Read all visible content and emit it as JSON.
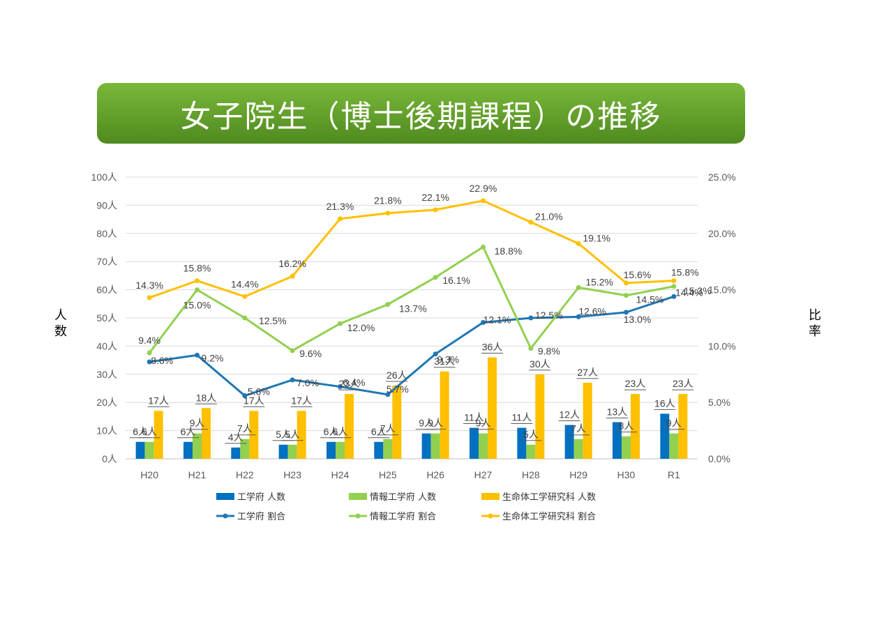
{
  "title": "女子院生（博士後期課程）の推移",
  "left_axis_label": [
    "人",
    "数"
  ],
  "right_axis_label": [
    "比",
    "率"
  ],
  "chart_data": {
    "type": "bar",
    "categories": [
      "H20",
      "H21",
      "H22",
      "H23",
      "H24",
      "H25",
      "H26",
      "H27",
      "H28",
      "H29",
      "H30",
      "R1"
    ],
    "left_axis": {
      "min": 0,
      "max": 100,
      "step": 10,
      "unit": "人",
      "ticks": [
        "0人",
        "10人",
        "20人",
        "30人",
        "40人",
        "50人",
        "60人",
        "70人",
        "80人",
        "90人",
        "100人"
      ]
    },
    "right_axis": {
      "min": 0,
      "max": 25,
      "step": 5,
      "unit": "%",
      "ticks": [
        "0.0%",
        "5.0%",
        "10.0%",
        "15.0%",
        "20.0%",
        "25.0%"
      ]
    },
    "bar_series": [
      {
        "name": "工学府 人数",
        "color": "#0070c0",
        "values": [
          6,
          6,
          4,
          5,
          6,
          6,
          9,
          11,
          11,
          12,
          13,
          16
        ],
        "labels": [
          "6人",
          "6人",
          "4人",
          "5人",
          "6人",
          "6人",
          "9人",
          "11人",
          "11人",
          "12人",
          "13人",
          "16人"
        ]
      },
      {
        "name": "情報工学府 人数",
        "color": "#92d050",
        "values": [
          6,
          9,
          7,
          5,
          6,
          7,
          9,
          9,
          5,
          7,
          8,
          9
        ],
        "labels": [
          "6人",
          "9人",
          "7人",
          "5人",
          "6人",
          "7人",
          "9人",
          "9人",
          "5人",
          "7人",
          "8人",
          "9人"
        ]
      },
      {
        "name": "生命体工学研究科 人数",
        "color": "#ffc000",
        "values": [
          17,
          18,
          17,
          17,
          23,
          26,
          31,
          36,
          30,
          27,
          23,
          23
        ],
        "labels": [
          "17人",
          "18人",
          "17人",
          "17人",
          "23人",
          "26人",
          "31人",
          "36人",
          "30人",
          "27人",
          "23人",
          "23人"
        ]
      }
    ],
    "line_series": [
      {
        "name": "工学府 割合",
        "color": "#1f77b4",
        "values": [
          8.6,
          9.2,
          5.6,
          7.0,
          6.4,
          5.7,
          9.3,
          12.1,
          12.5,
          12.6,
          13.0,
          14.4
        ],
        "labels": [
          "8.6%",
          "9.2%",
          "5.6%",
          "7.0%",
          "6.4%",
          "5.7%",
          "9.3%",
          "12.1%",
          "12.5%",
          "12.6%",
          "13.0%",
          "14.4%"
        ]
      },
      {
        "name": "情報工学府 割合",
        "color": "#92d050",
        "values": [
          9.4,
          15.0,
          12.5,
          9.6,
          12.0,
          13.7,
          16.1,
          18.8,
          9.8,
          15.2,
          14.5,
          15.3
        ],
        "labels": [
          "9.4%",
          "15.0%",
          "12.5%",
          "9.6%",
          "12.0%",
          "13.7%",
          "16.1%",
          "18.8%",
          "9.8%",
          "15.2%",
          "14.5%",
          "15.3%"
        ]
      },
      {
        "name": "生命体工学研究科 割合",
        "color": "#ffc000",
        "values": [
          14.3,
          15.8,
          14.4,
          16.2,
          21.3,
          21.8,
          22.1,
          22.9,
          21.0,
          19.1,
          15.6,
          15.8
        ],
        "labels": [
          "14.3%",
          "15.8%",
          "14.4%",
          "16.2%",
          "21.3%",
          "21.8%",
          "22.1%",
          "22.9%",
          "21.0%",
          "19.1%",
          "15.6%",
          "15.8%"
        ]
      }
    ],
    "grid": true,
    "legend_position": "bottom"
  }
}
